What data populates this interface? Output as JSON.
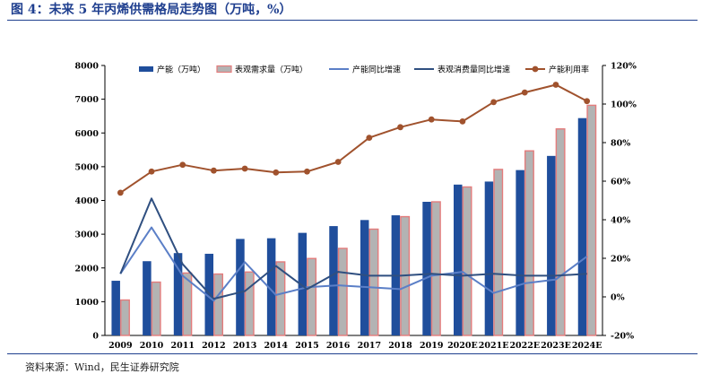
{
  "figure": {
    "title": "图 4：未来 5 年丙烯供需格局走势图（万吨，%）",
    "source": "资料来源：Wind，民生证券研究院"
  },
  "colors": {
    "capacity": "#1f4e9c",
    "demand_fill": "#b3b3b3",
    "demand_edge": "#e47c7c",
    "capacity_yoy": "#5b7fc7",
    "demand_yoy": "#2f4f80",
    "utilization": "#a0522d",
    "title": "#1f3f8f"
  },
  "chart_data": {
    "type": "bar",
    "categories": [
      "2009",
      "2010",
      "2011",
      "2012",
      "2013",
      "2014",
      "2015",
      "2016",
      "2017",
      "2018",
      "2019",
      "2020E",
      "2021E",
      "2022E",
      "2023E",
      "2024E"
    ],
    "series": [
      {
        "name": "产能（万吨）",
        "kind": "bar",
        "axis": "left",
        "values": [
          1620,
          2200,
          2440,
          2420,
          2860,
          2880,
          3040,
          3240,
          3420,
          3560,
          3960,
          4470,
          4560,
          4900,
          5320,
          6440
        ]
      },
      {
        "name": "表观需求量（万吨）",
        "kind": "bar",
        "axis": "left",
        "values": [
          1050,
          1580,
          1850,
          1820,
          1880,
          2180,
          2280,
          2580,
          3150,
          3520,
          3960,
          4400,
          4920,
          5470,
          6120,
          6820
        ]
      },
      {
        "name": "产能同比增速",
        "kind": "line",
        "axis": "right",
        "values": [
          12,
          36,
          11,
          -2,
          18,
          1,
          5,
          6,
          5,
          4,
          11,
          13,
          2,
          7,
          9,
          21
        ]
      },
      {
        "name": "表观消费量同比增速",
        "kind": "line",
        "axis": "right",
        "values": [
          12,
          51,
          17,
          -1,
          3,
          16,
          4,
          13,
          11,
          11,
          12,
          11,
          12,
          11,
          11,
          12
        ]
      },
      {
        "name": "产能利用率",
        "kind": "line",
        "axis": "right",
        "marker": "circle",
        "values": [
          54,
          65,
          68.5,
          65.5,
          66.5,
          64.5,
          65,
          70,
          82.5,
          88,
          92,
          91,
          101,
          106,
          110,
          101.5
        ]
      }
    ],
    "ylim_left": [
      0,
      8000
    ],
    "yticks_left": [
      "0",
      "1000",
      "2000",
      "3000",
      "4000",
      "5000",
      "6000",
      "7000",
      "8000"
    ],
    "ylim_right": [
      -20,
      120
    ],
    "yticks_right": [
      "-20%",
      "0%",
      "20%",
      "40%",
      "60%",
      "80%",
      "100%",
      "120%"
    ],
    "legend": "top"
  }
}
